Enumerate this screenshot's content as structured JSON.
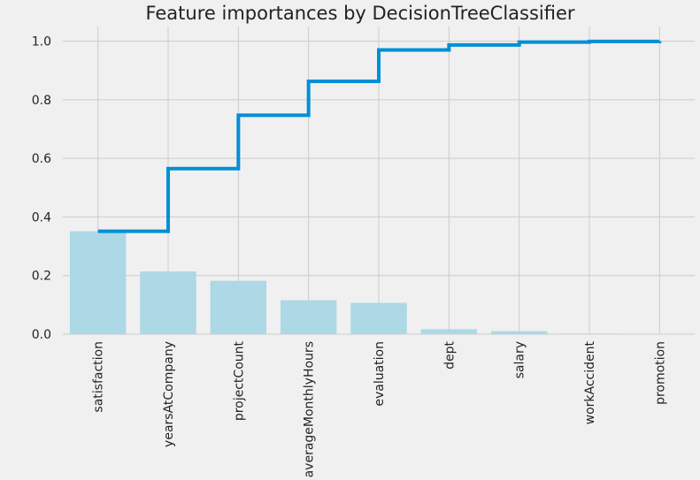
{
  "chart_data": {
    "type": "bar",
    "title": "Feature importances by DecisionTreeClassifier",
    "xlabel": "",
    "ylabel": "",
    "categories": [
      "satisfaction",
      "yearsAtCompany",
      "projectCount",
      "averageMonthlyHours",
      "evaluation",
      "dept",
      "salary",
      "workAccident",
      "promotion"
    ],
    "series": [
      {
        "type": "bar",
        "values": [
          0.351,
          0.214,
          0.182,
          0.116,
          0.107,
          0.017,
          0.01,
          0.002,
          0.001
        ],
        "color": "#add8e6"
      },
      {
        "type": "step",
        "values": [
          0.351,
          0.565,
          0.747,
          0.863,
          0.97,
          0.987,
          0.997,
          0.999,
          1.0
        ],
        "color": "#008fd5"
      }
    ],
    "ylim": [
      0,
      1.05
    ],
    "yticks": [
      0.0,
      0.2,
      0.4,
      0.6,
      0.8,
      1.0
    ],
    "ytick_labels": [
      "0.0",
      "0.2",
      "0.4",
      "0.6",
      "0.8",
      "1.0"
    ],
    "grid": true,
    "background": "#f0f0f0",
    "grid_color": "#cbcbcb"
  }
}
